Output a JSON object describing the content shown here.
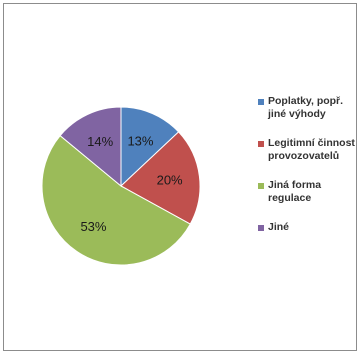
{
  "chart_data": {
    "type": "pie",
    "slices": [
      {
        "label": "Poplatky, popř. jiné výhody",
        "value": 13,
        "display": "13%",
        "color": "#4f81bd"
      },
      {
        "label": "Legitimní činnost provozovatelů",
        "value": 20,
        "display": "20%",
        "color": "#c0504d"
      },
      {
        "label": "Jiná forma regulace",
        "value": 53,
        "display": "53%",
        "color": "#9bbb59"
      },
      {
        "label": "Jiné",
        "value": 14,
        "display": "14%",
        "color": "#8064a2"
      }
    ],
    "start": "top",
    "direction": "clockwise",
    "legend_position": "right"
  }
}
